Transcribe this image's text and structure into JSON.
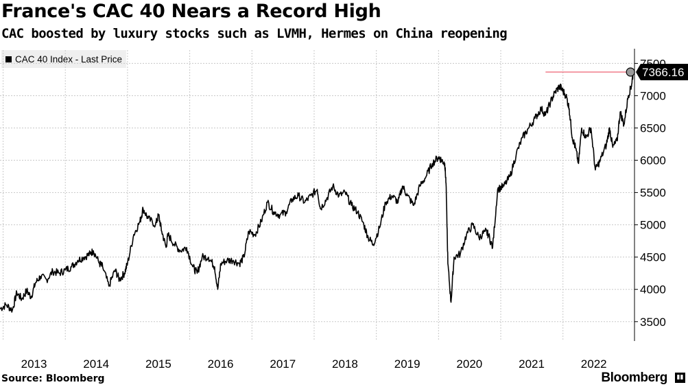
{
  "title": "France's CAC 40 Nears a Record High",
  "subtitle": "CAC boosted by luxury stocks such as LVMH, Hermes on China reopening",
  "legend_label": "CAC 40 Index - Last Price",
  "source": "Source: Bloomberg",
  "brand": "Bloomberg",
  "last_value_label": "7366.16",
  "colors": {
    "line": "#000000",
    "grid": "#c8c8c8",
    "record_line": "#e8384f",
    "marker": "#9a9a9a"
  },
  "chart_data": {
    "type": "line",
    "title": "France's CAC 40 Nears a Record High",
    "subtitle": "CAC boosted by luxury stocks such as LVMH, Hermes on China reopening",
    "xlabel": "",
    "ylabel": "",
    "xlim": [
      2012.95,
      2023.15
    ],
    "ylim": [
      3200,
      7600
    ],
    "x_ticks": [
      2013,
      2014,
      2015,
      2016,
      2017,
      2018,
      2019,
      2020,
      2021,
      2022
    ],
    "x_tick_labels": [
      "2013",
      "2014",
      "2015",
      "2016",
      "2017",
      "2018",
      "2019",
      "2020",
      "2021",
      "2022"
    ],
    "y_ticks": [
      3500,
      4000,
      4500,
      5000,
      5500,
      6000,
      6500,
      7000,
      7500
    ],
    "y_tick_labels": [
      "3500",
      "4000",
      "4500",
      "5000",
      "5500",
      "6000",
      "6500",
      "7000",
      "7500"
    ],
    "grid": true,
    "legend_position": "top-left",
    "last_value": 7366.16,
    "record_high": 7366,
    "series": [
      {
        "name": "CAC 40 Index - Last Price",
        "x": [
          2012.95,
          2013.05,
          2013.15,
          2013.22,
          2013.3,
          2013.38,
          2013.45,
          2013.52,
          2013.6,
          2013.7,
          2013.8,
          2013.9,
          2014.0,
          2014.1,
          2014.2,
          2014.3,
          2014.4,
          2014.45,
          2014.55,
          2014.6,
          2014.7,
          2014.8,
          2014.87,
          2014.95,
          2015.0,
          2015.1,
          2015.2,
          2015.25,
          2015.33,
          2015.45,
          2015.5,
          2015.55,
          2015.62,
          2015.65,
          2015.75,
          2015.85,
          2015.95,
          2016.05,
          2016.12,
          2016.2,
          2016.3,
          2016.4,
          2016.45,
          2016.5,
          2016.6,
          2016.7,
          2016.8,
          2016.87,
          2016.95,
          2017.05,
          2017.15,
          2017.25,
          2017.35,
          2017.45,
          2017.55,
          2017.65,
          2017.75,
          2017.85,
          2017.95,
          2018.05,
          2018.1,
          2018.2,
          2018.3,
          2018.4,
          2018.5,
          2018.6,
          2018.7,
          2018.8,
          2018.87,
          2018.95,
          2019.05,
          2019.15,
          2019.25,
          2019.35,
          2019.42,
          2019.5,
          2019.6,
          2019.7,
          2019.8,
          2019.9,
          2020.0,
          2020.05,
          2020.1,
          2020.12,
          2020.15,
          2020.2,
          2020.25,
          2020.35,
          2020.45,
          2020.55,
          2020.65,
          2020.75,
          2020.8,
          2020.87,
          2020.95,
          2021.05,
          2021.15,
          2021.25,
          2021.35,
          2021.45,
          2021.55,
          2021.65,
          2021.72,
          2021.8,
          2021.87,
          2021.95,
          2021.98,
          2022.05,
          2022.1,
          2022.15,
          2022.2,
          2022.25,
          2022.3,
          2022.37,
          2022.45,
          2022.52,
          2022.6,
          2022.7,
          2022.75,
          2022.8,
          2022.87,
          2022.92,
          2022.98,
          2023.05,
          2023.1,
          2023.13
        ],
        "y": [
          3700,
          3760,
          3680,
          3950,
          3850,
          3980,
          3880,
          4100,
          4200,
          4150,
          4280,
          4250,
          4300,
          4350,
          4450,
          4500,
          4550,
          4600,
          4400,
          4350,
          4050,
          4300,
          4150,
          4250,
          4400,
          4850,
          5050,
          5250,
          5100,
          5000,
          5150,
          4900,
          4650,
          4850,
          4700,
          4600,
          4650,
          4350,
          4250,
          4500,
          4500,
          4350,
          4000,
          4400,
          4450,
          4450,
          4400,
          4500,
          4900,
          4850,
          5050,
          5350,
          5200,
          5150,
          5200,
          5400,
          5450,
          5350,
          5450,
          5550,
          5250,
          5400,
          5600,
          5450,
          5500,
          5300,
          5200,
          5000,
          4800,
          4700,
          4950,
          5350,
          5450,
          5350,
          5600,
          5450,
          5300,
          5600,
          5750,
          5950,
          6050,
          6000,
          5950,
          5650,
          4400,
          3800,
          4500,
          4550,
          4850,
          5000,
          4800,
          4900,
          4850,
          4650,
          5550,
          5600,
          5750,
          6100,
          6350,
          6500,
          6650,
          6800,
          6700,
          6900,
          7050,
          7150,
          7100,
          7000,
          6800,
          6350,
          6200,
          5950,
          6500,
          6350,
          6500,
          5850,
          6000,
          6250,
          6500,
          6200,
          6300,
          6750,
          6550,
          7000,
          7150,
          7366.16
        ]
      }
    ]
  }
}
